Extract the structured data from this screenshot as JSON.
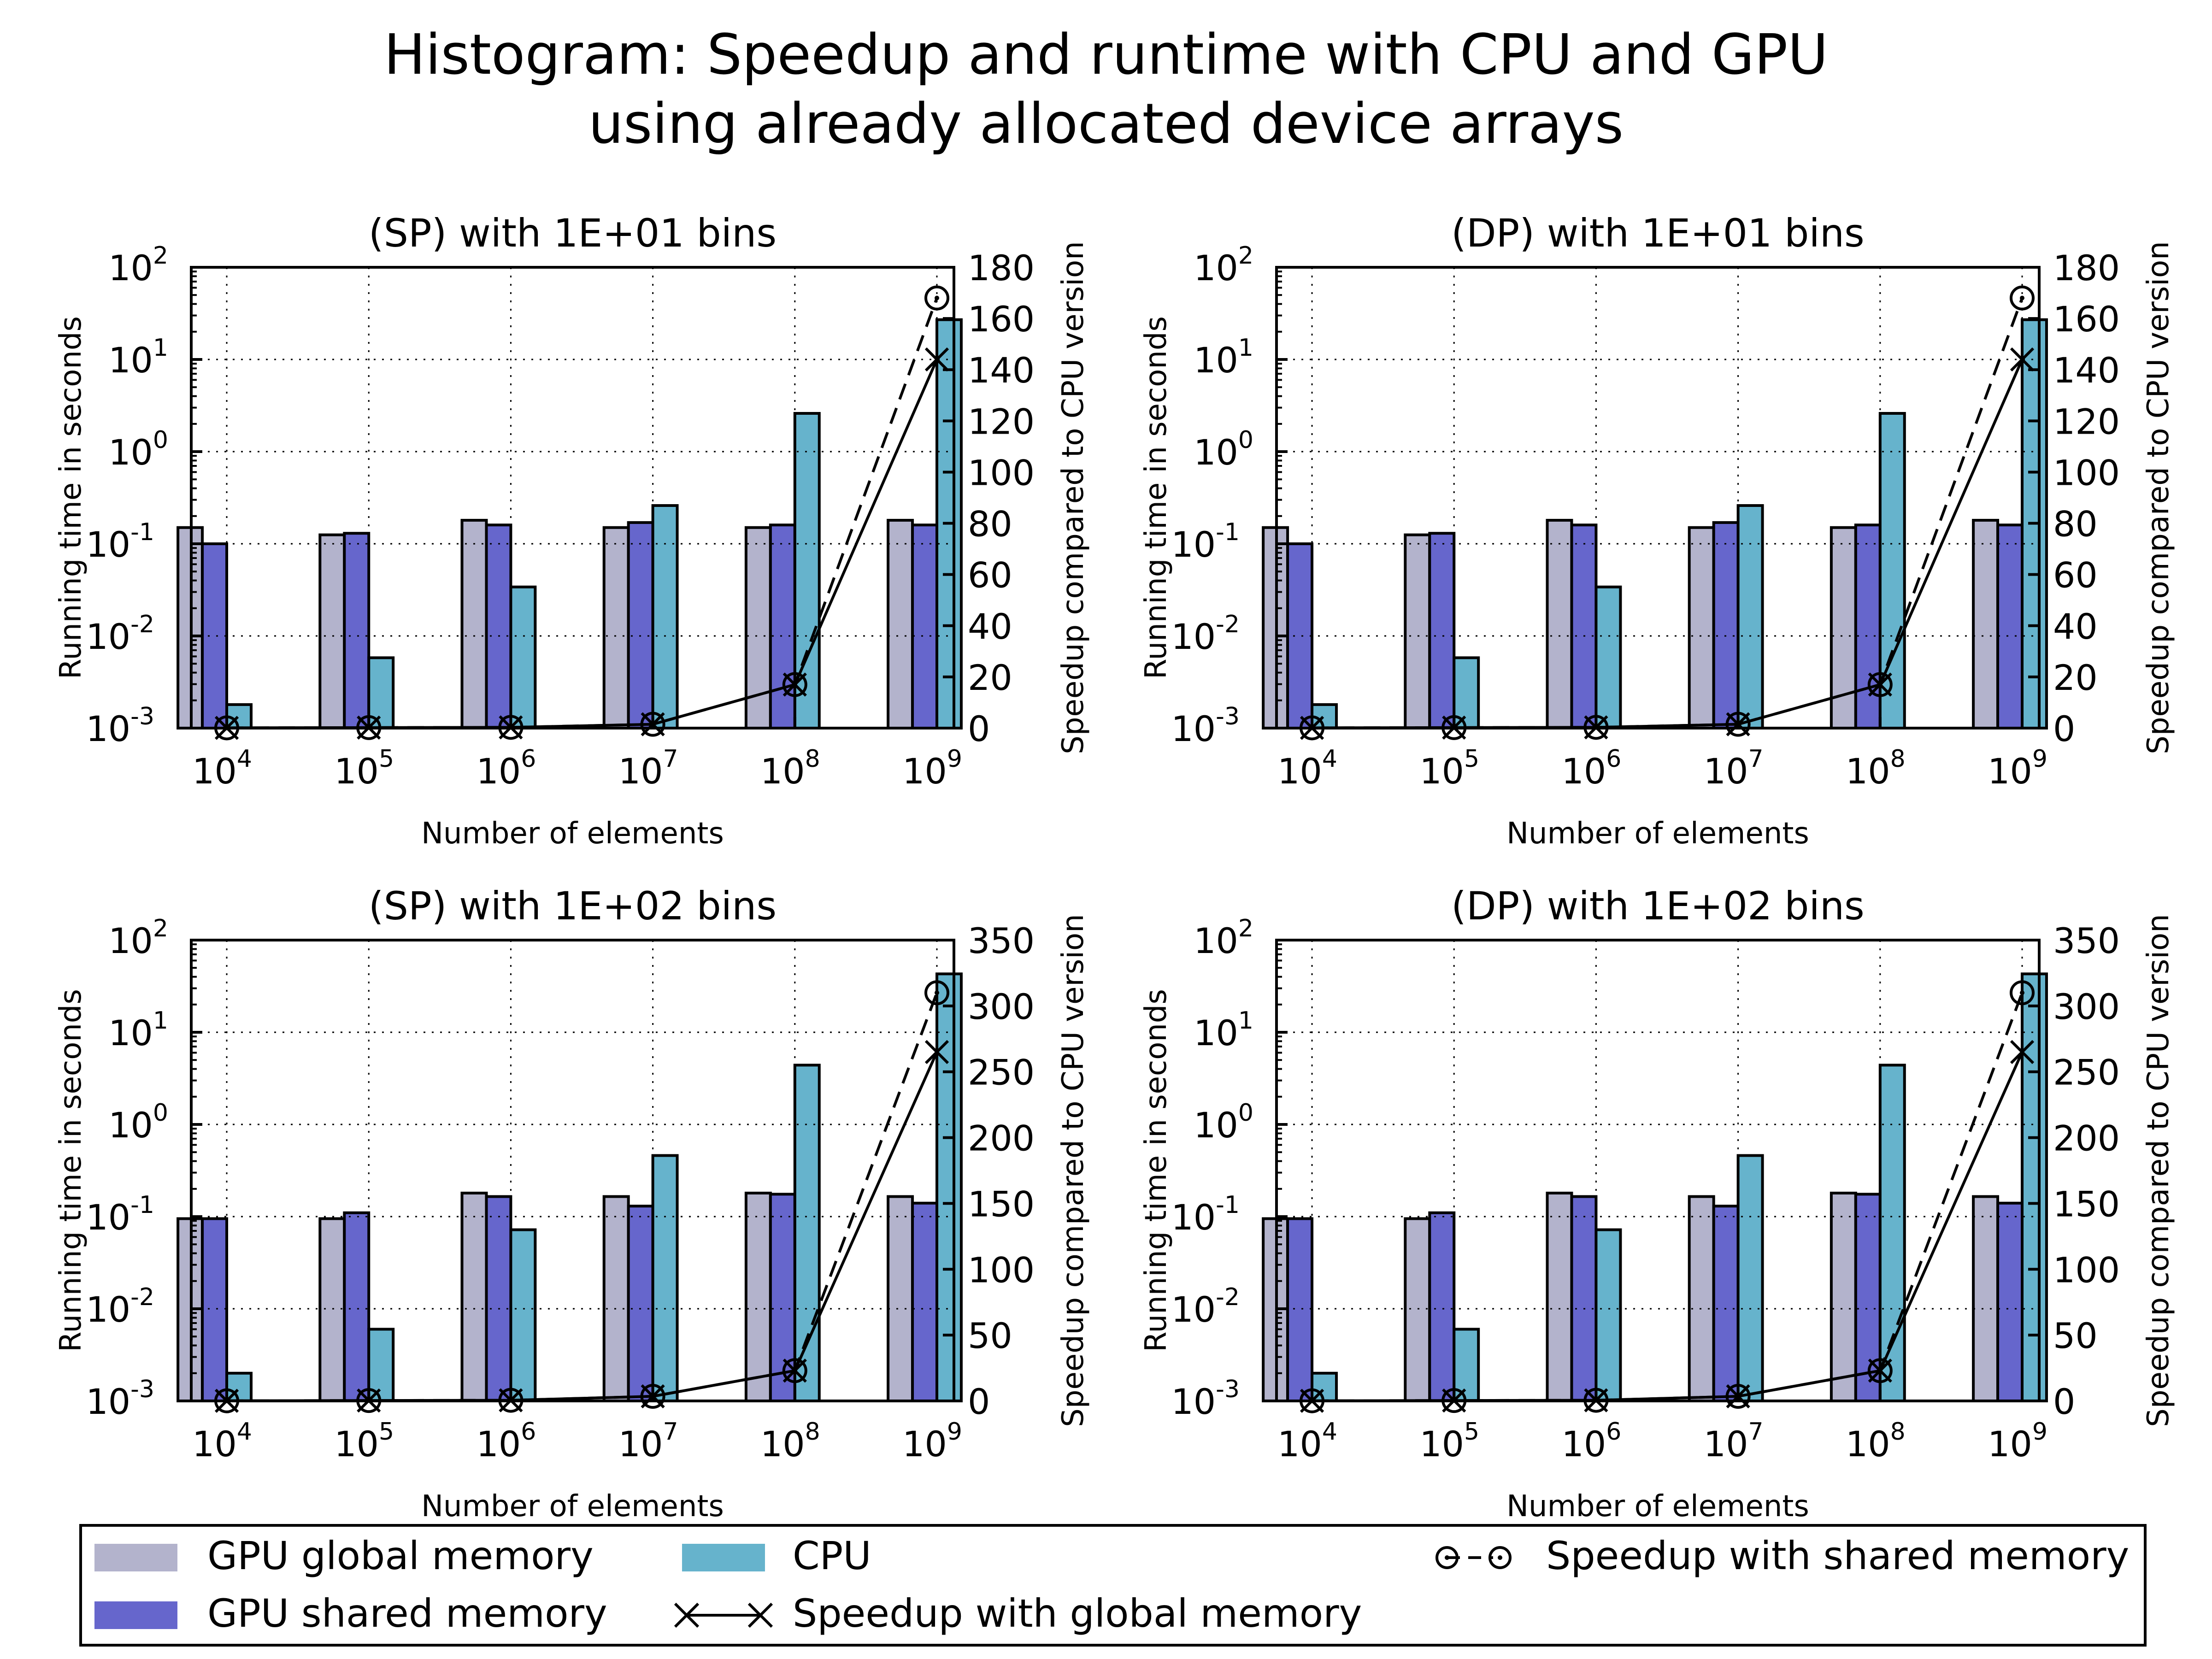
{
  "title_line1": "Histogram: Speedup and runtime with CPU and GPU",
  "title_line2": "using already allocated device arrays",
  "colors": {
    "gpu_global": "#b3b3cc",
    "gpu_shared": "#6666cc",
    "cpu": "#66b3cc",
    "line": "#000000",
    "grid": "#000000"
  },
  "legend": {
    "gpu_global": "GPU global memory",
    "gpu_shared": "GPU shared memory",
    "cpu": "CPU",
    "speedup_global": "Speedup with global memory",
    "speedup_shared": "Speedup with shared memory"
  },
  "chart_data": [
    {
      "type": "bar",
      "title": "(SP) with 1E+01 bins",
      "xlabel": "Number of elements",
      "ylabel": "Running time in seconds",
      "y2label": "Speedup compared to CPU version",
      "x_scale": "log",
      "y_scale": "log",
      "categories": [
        "10^4",
        "10^5",
        "10^6",
        "10^7",
        "10^8",
        "10^9"
      ],
      "x": [
        10000,
        100000,
        1000000,
        10000000,
        100000000,
        1000000000
      ],
      "ylim": [
        0.001,
        100
      ],
      "y_ticks": [
        "-3",
        "-2",
        "-1",
        "0",
        "1",
        "2"
      ],
      "y2lim": [
        0,
        180
      ],
      "y2_ticks": [
        0,
        20,
        40,
        60,
        80,
        100,
        120,
        140,
        160,
        180
      ],
      "series": [
        {
          "name": "GPU global memory",
          "values": [
            0.15,
            0.125,
            0.18,
            0.15,
            0.15,
            0.18
          ]
        },
        {
          "name": "GPU shared memory",
          "values": [
            0.1,
            0.13,
            0.16,
            0.17,
            0.16,
            0.16
          ]
        },
        {
          "name": "CPU",
          "values": [
            0.0018,
            0.0058,
            0.034,
            0.26,
            2.6,
            27
          ]
        },
        {
          "name": "Speedup with global memory",
          "axis": "right",
          "values": [
            0.1,
            0.2,
            0.3,
            1.5,
            17,
            144
          ]
        },
        {
          "name": "Speedup with shared memory",
          "axis": "right",
          "values": [
            0.1,
            0.2,
            0.3,
            1.5,
            17,
            168
          ]
        }
      ],
      "grid": true
    },
    {
      "type": "bar",
      "title": "(DP) with 1E+01 bins",
      "xlabel": "Number of elements",
      "ylabel": "Running time in seconds",
      "y2label": "Speedup compared to CPU version",
      "x_scale": "log",
      "y_scale": "log",
      "categories": [
        "10^4",
        "10^5",
        "10^6",
        "10^7",
        "10^8",
        "10^9"
      ],
      "x": [
        10000,
        100000,
        1000000,
        10000000,
        100000000,
        1000000000
      ],
      "ylim": [
        0.001,
        100
      ],
      "y_ticks": [
        "-3",
        "-2",
        "-1",
        "0",
        "1",
        "2"
      ],
      "y2lim": [
        0,
        180
      ],
      "y2_ticks": [
        0,
        20,
        40,
        60,
        80,
        100,
        120,
        140,
        160,
        180
      ],
      "series": [
        {
          "name": "GPU global memory",
          "values": [
            0.15,
            0.125,
            0.18,
            0.15,
            0.15,
            0.18
          ]
        },
        {
          "name": "GPU shared memory",
          "values": [
            0.1,
            0.13,
            0.16,
            0.17,
            0.16,
            0.16
          ]
        },
        {
          "name": "CPU",
          "values": [
            0.0018,
            0.0058,
            0.034,
            0.26,
            2.6,
            27
          ]
        },
        {
          "name": "Speedup with global memory",
          "axis": "right",
          "values": [
            0.1,
            0.2,
            0.3,
            1.5,
            17,
            144
          ]
        },
        {
          "name": "Speedup with shared memory",
          "axis": "right",
          "values": [
            0.1,
            0.2,
            0.3,
            1.5,
            17,
            168
          ]
        }
      ],
      "grid": true
    },
    {
      "type": "bar",
      "title": "(SP) with 1E+02 bins",
      "xlabel": "Number of elements",
      "ylabel": "Running time in seconds",
      "y2label": "Speedup compared to CPU version",
      "x_scale": "log",
      "y_scale": "log",
      "categories": [
        "10^4",
        "10^5",
        "10^6",
        "10^7",
        "10^8",
        "10^9"
      ],
      "x": [
        10000,
        100000,
        1000000,
        10000000,
        100000000,
        1000000000
      ],
      "ylim": [
        0.001,
        100
      ],
      "y_ticks": [
        "-3",
        "-2",
        "-1",
        "0",
        "1",
        "2"
      ],
      "y2lim": [
        0,
        350
      ],
      "y2_ticks": [
        0,
        50,
        100,
        150,
        200,
        250,
        300,
        350
      ],
      "series": [
        {
          "name": "GPU global memory",
          "values": [
            0.095,
            0.095,
            0.18,
            0.165,
            0.18,
            0.165
          ]
        },
        {
          "name": "GPU shared memory",
          "values": [
            0.095,
            0.11,
            0.165,
            0.13,
            0.175,
            0.14
          ]
        },
        {
          "name": "CPU",
          "values": [
            0.002,
            0.006,
            0.072,
            0.46,
            4.4,
            43
          ]
        },
        {
          "name": "Speedup with global memory",
          "axis": "right",
          "values": [
            0.1,
            0.3,
            0.5,
            3.5,
            23,
            265
          ]
        },
        {
          "name": "Speedup with shared memory",
          "axis": "right",
          "values": [
            0.1,
            0.3,
            0.5,
            3.5,
            23,
            310
          ]
        }
      ],
      "grid": true
    },
    {
      "type": "bar",
      "title": "(DP) with 1E+02 bins",
      "xlabel": "Number of elements",
      "ylabel": "Running time in seconds",
      "y2label": "Speedup compared to CPU version",
      "x_scale": "log",
      "y_scale": "log",
      "categories": [
        "10^4",
        "10^5",
        "10^6",
        "10^7",
        "10^8",
        "10^9"
      ],
      "x": [
        10000,
        100000,
        1000000,
        10000000,
        100000000,
        1000000000
      ],
      "ylim": [
        0.001,
        100
      ],
      "y_ticks": [
        "-3",
        "-2",
        "-1",
        "0",
        "1",
        "2"
      ],
      "y2lim": [
        0,
        350
      ],
      "y2_ticks": [
        0,
        50,
        100,
        150,
        200,
        250,
        300,
        350
      ],
      "series": [
        {
          "name": "GPU global memory",
          "values": [
            0.095,
            0.095,
            0.18,
            0.165,
            0.18,
            0.165
          ]
        },
        {
          "name": "GPU shared memory",
          "values": [
            0.095,
            0.11,
            0.165,
            0.13,
            0.175,
            0.14
          ]
        },
        {
          "name": "CPU",
          "values": [
            0.002,
            0.006,
            0.072,
            0.46,
            4.4,
            43
          ]
        },
        {
          "name": "Speedup with global memory",
          "axis": "right",
          "values": [
            0.1,
            0.3,
            0.5,
            3.5,
            23,
            265
          ]
        },
        {
          "name": "Speedup with shared memory",
          "axis": "right",
          "values": [
            0.1,
            0.3,
            0.5,
            3.5,
            23,
            310
          ]
        }
      ],
      "grid": true
    }
  ]
}
